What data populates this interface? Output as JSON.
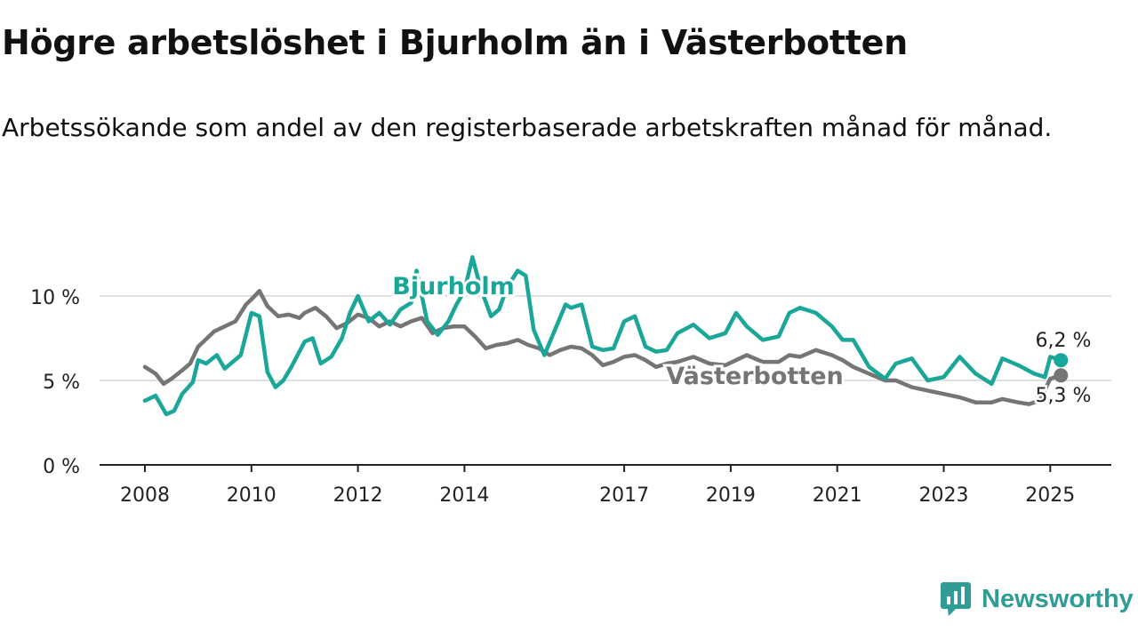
{
  "title": "Högre arbetslöshet i Bjurholm än i Västerbotten",
  "subtitle": "Arbetssökande som andel av den registerbaserade arbetskraften månad för månad.",
  "brand": {
    "name": "Newsworthy",
    "icon": "newsworthy-logo-icon",
    "color": "#2f9c95"
  },
  "chart_data": {
    "type": "line",
    "title": "Högre arbetslöshet i Bjurholm än i Västerbotten",
    "subtitle": "Arbetssökande som andel av den registerbaserade arbetskraften månad för månad.",
    "ylim": [
      0,
      11.5
    ],
    "xlim": [
      2008,
      2026.1
    ],
    "yticks": [
      0,
      5,
      10
    ],
    "ytick_labels": [
      "0 %",
      "5 %",
      "10 %"
    ],
    "xticks": [
      2008,
      2010,
      2012,
      2014,
      2017,
      2019,
      2021,
      2023,
      2025
    ],
    "xtick_labels": [
      "2008",
      "2010",
      "2012",
      "2014",
      "2017",
      "2019",
      "2021",
      "2023",
      "2025"
    ],
    "grid": true,
    "legend": "inline labels",
    "end_labels": [
      "6,2 %",
      "5,3 %"
    ],
    "series": [
      {
        "name": "Bjurholm",
        "color": "#1aa698",
        "x": [
          2008.0,
          2008.2,
          2008.4,
          2008.55,
          2008.7,
          2008.9,
          2009.0,
          2009.15,
          2009.35,
          2009.5,
          2009.65,
          2009.8,
          2010.0,
          2010.15,
          2010.3,
          2010.45,
          2010.6,
          2010.75,
          2011.0,
          2011.15,
          2011.3,
          2011.5,
          2011.7,
          2011.85,
          2012.0,
          2012.2,
          2012.4,
          2012.6,
          2012.8,
          2013.0,
          2013.1,
          2013.3,
          2013.5,
          2013.7,
          2013.85,
          2014.0,
          2014.15,
          2014.3,
          2014.5,
          2014.65,
          2014.8,
          2015.0,
          2015.15,
          2015.3,
          2015.5,
          2015.7,
          2015.9,
          2016.0,
          2016.2,
          2016.4,
          2016.6,
          2016.8,
          2017.0,
          2017.2,
          2017.4,
          2017.6,
          2017.8,
          2018.0,
          2018.3,
          2018.6,
          2018.9,
          2019.1,
          2019.3,
          2019.6,
          2019.9,
          2020.1,
          2020.3,
          2020.6,
          2020.9,
          2021.1,
          2021.3,
          2021.6,
          2021.9,
          2022.1,
          2022.4,
          2022.7,
          2023.0,
          2023.3,
          2023.6,
          2023.9,
          2024.1,
          2024.4,
          2024.7,
          2024.9,
          2025.0,
          2025.2
        ],
        "values": [
          3.8,
          4.1,
          3.0,
          3.2,
          4.2,
          4.9,
          6.2,
          6.0,
          6.5,
          5.7,
          6.1,
          6.5,
          9.0,
          8.8,
          5.5,
          4.6,
          5.0,
          5.8,
          7.3,
          7.5,
          6.0,
          6.4,
          7.5,
          9.0,
          10.0,
          8.5,
          9.0,
          8.3,
          9.2,
          9.6,
          11.5,
          8.5,
          7.7,
          8.5,
          9.5,
          10.3,
          12.3,
          10.5,
          8.8,
          9.2,
          10.5,
          11.5,
          11.2,
          8.0,
          6.5,
          8.0,
          9.5,
          9.3,
          9.5,
          7.0,
          6.8,
          6.9,
          8.5,
          8.8,
          7.0,
          6.7,
          6.8,
          7.8,
          8.3,
          7.5,
          7.8,
          9.0,
          8.2,
          7.4,
          7.6,
          9.0,
          9.3,
          9.0,
          8.2,
          7.4,
          7.4,
          5.8,
          5.1,
          6.0,
          6.3,
          5.0,
          5.2,
          6.4,
          5.4,
          4.8,
          6.3,
          5.9,
          5.4,
          5.2,
          6.4,
          6.2
        ]
      },
      {
        "name": "Västerbotten",
        "color": "#757575",
        "x": [
          2008.0,
          2008.2,
          2008.35,
          2008.5,
          2008.7,
          2008.85,
          2009.0,
          2009.3,
          2009.5,
          2009.7,
          2009.9,
          2010.0,
          2010.15,
          2010.3,
          2010.5,
          2010.7,
          2010.9,
          2011.0,
          2011.2,
          2011.4,
          2011.6,
          2011.8,
          2012.0,
          2012.2,
          2012.4,
          2012.6,
          2012.8,
          2013.0,
          2013.2,
          2013.4,
          2013.6,
          2013.8,
          2014.0,
          2014.2,
          2014.4,
          2014.6,
          2014.8,
          2015.0,
          2015.2,
          2015.4,
          2015.6,
          2015.8,
          2016.0,
          2016.2,
          2016.4,
          2016.6,
          2016.8,
          2017.0,
          2017.2,
          2017.4,
          2017.6,
          2017.8,
          2018.0,
          2018.3,
          2018.6,
          2018.9,
          2019.1,
          2019.3,
          2019.6,
          2019.9,
          2020.1,
          2020.3,
          2020.6,
          2020.9,
          2021.1,
          2021.3,
          2021.6,
          2021.9,
          2022.1,
          2022.4,
          2022.7,
          2023.0,
          2023.3,
          2023.6,
          2023.9,
          2024.1,
          2024.4,
          2024.6,
          2024.8,
          2025.0,
          2025.2
        ],
        "values": [
          5.8,
          5.4,
          4.8,
          5.1,
          5.6,
          6.0,
          7.0,
          7.9,
          8.2,
          8.5,
          9.5,
          9.8,
          10.3,
          9.4,
          8.8,
          8.9,
          8.7,
          9.0,
          9.3,
          8.8,
          8.1,
          8.4,
          8.9,
          8.7,
          8.2,
          8.5,
          8.2,
          8.5,
          8.7,
          7.8,
          8.1,
          8.2,
          8.2,
          7.6,
          6.9,
          7.1,
          7.2,
          7.4,
          7.1,
          6.9,
          6.5,
          6.8,
          7.0,
          6.9,
          6.5,
          5.9,
          6.1,
          6.4,
          6.5,
          6.2,
          5.8,
          6.0,
          6.1,
          6.4,
          6.0,
          5.9,
          6.2,
          6.5,
          6.1,
          6.1,
          6.5,
          6.4,
          6.8,
          6.5,
          6.2,
          5.8,
          5.4,
          5.0,
          5.0,
          4.6,
          4.4,
          4.2,
          4.0,
          3.7,
          3.7,
          3.9,
          3.7,
          3.6,
          3.8,
          5.1,
          5.3
        ]
      }
    ]
  }
}
